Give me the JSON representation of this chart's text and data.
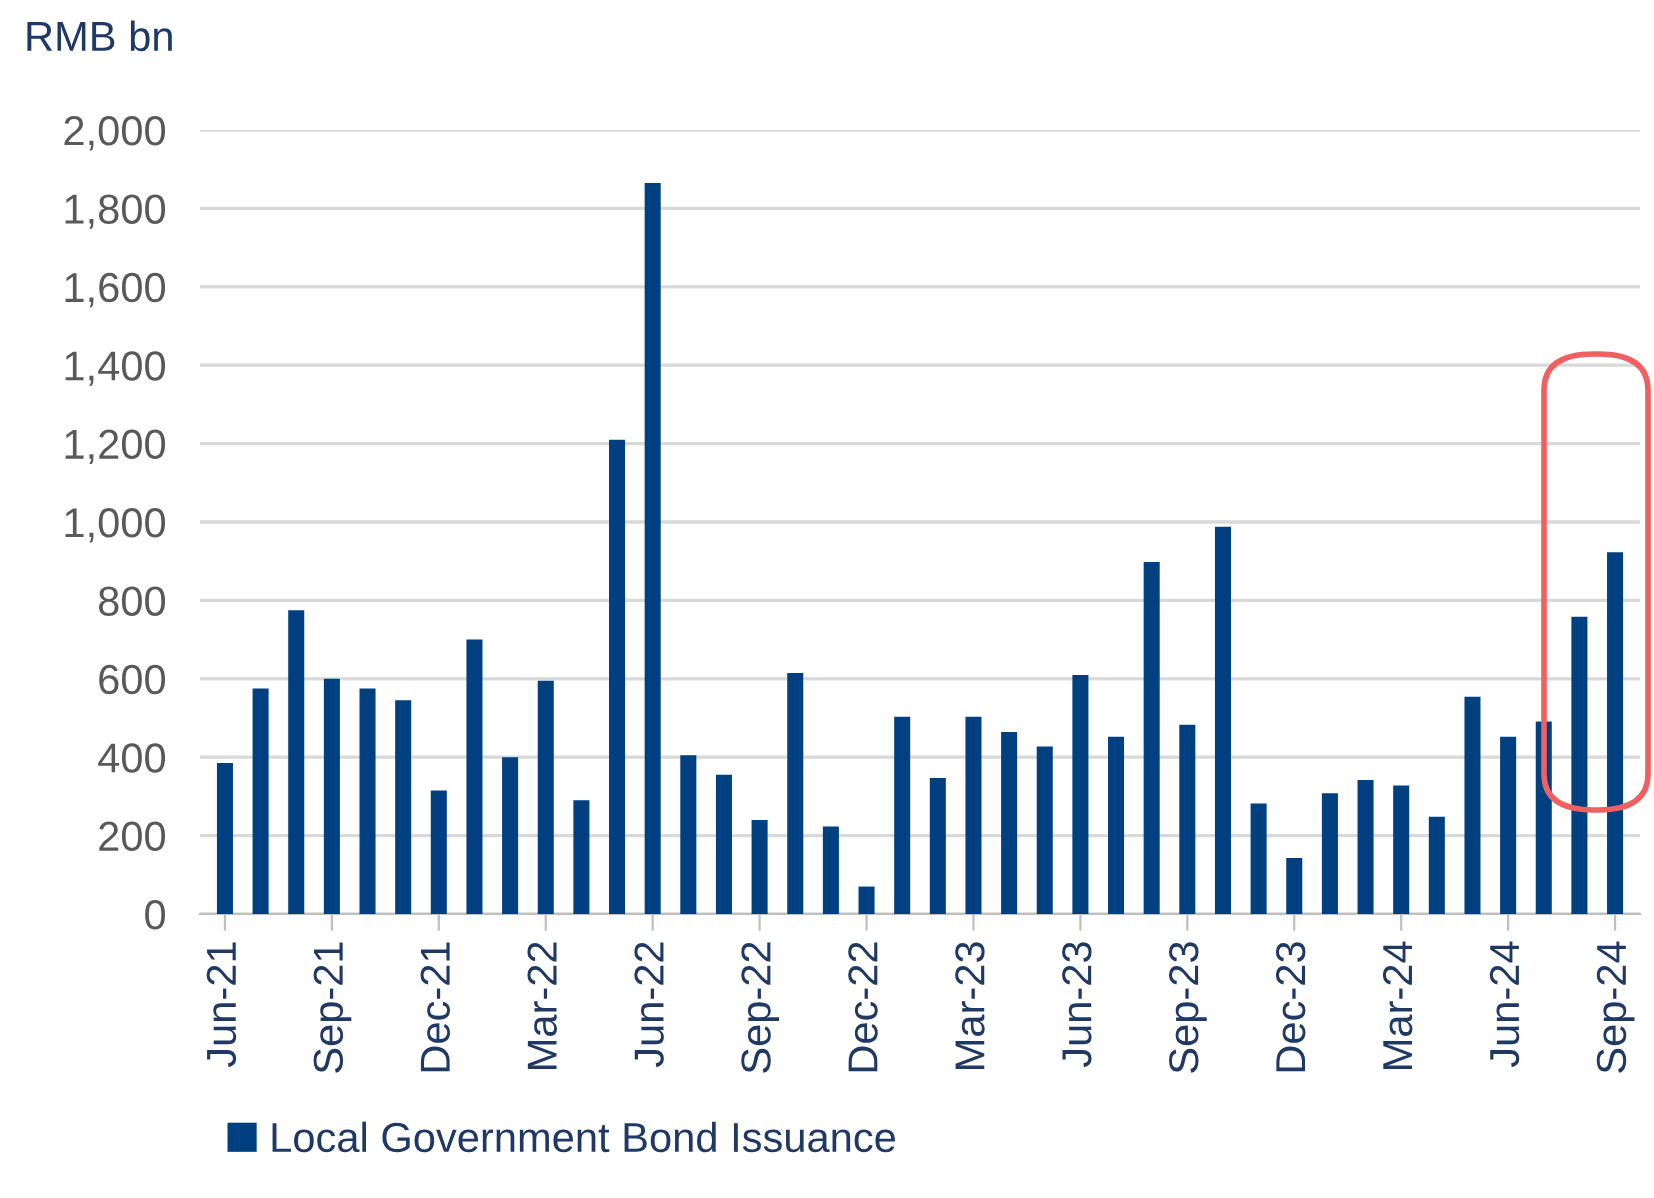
{
  "chart_data": {
    "type": "bar",
    "ylabel": "RMB bn",
    "categories": [
      "Jun-21",
      null,
      null,
      "Sep-21",
      null,
      null,
      "Dec-21",
      null,
      null,
      "Mar-22",
      null,
      null,
      "Jun-22",
      null,
      null,
      "Sep-22",
      null,
      null,
      "Dec-22",
      null,
      null,
      "Mar-23",
      null,
      null,
      "Jun-23",
      null,
      null,
      "Sep-23",
      null,
      null,
      "Dec-23",
      null,
      null,
      "Mar-24",
      null,
      null,
      "Jun-24",
      null,
      null,
      "Sep-24"
    ],
    "series": [
      {
        "name": "Local Government Bond Issuance",
        "color": "#004080",
        "values": [
          385,
          575,
          775,
          600,
          575,
          545,
          315,
          700,
          400,
          595,
          290,
          1210,
          1865,
          405,
          355,
          240,
          615,
          223,
          70,
          503,
          347,
          503,
          464,
          427,
          610,
          452,
          898,
          483,
          988,
          282,
          143,
          308,
          342,
          328,
          248,
          554,
          452,
          491,
          758,
          923
        ]
      }
    ],
    "ylim": [
      0,
      2000
    ],
    "yticks": [
      0,
      {
        "value": 200,
        "label": "200"
      },
      {
        "value": 400,
        "label": "400"
      },
      {
        "value": 600,
        "label": "600"
      },
      {
        "value": 800,
        "label": "800"
      },
      {
        "value": 1000,
        "label": "1,000"
      },
      {
        "value": 1200,
        "label": "1,200"
      },
      {
        "value": 1400,
        "label": "1,400"
      },
      {
        "value": 1600,
        "label": "1,600"
      },
      {
        "value": 1800,
        "label": "1,800"
      },
      {
        "value": 2000,
        "label": "2,000"
      }
    ],
    "grid": "y",
    "legend": "bottom"
  }
}
